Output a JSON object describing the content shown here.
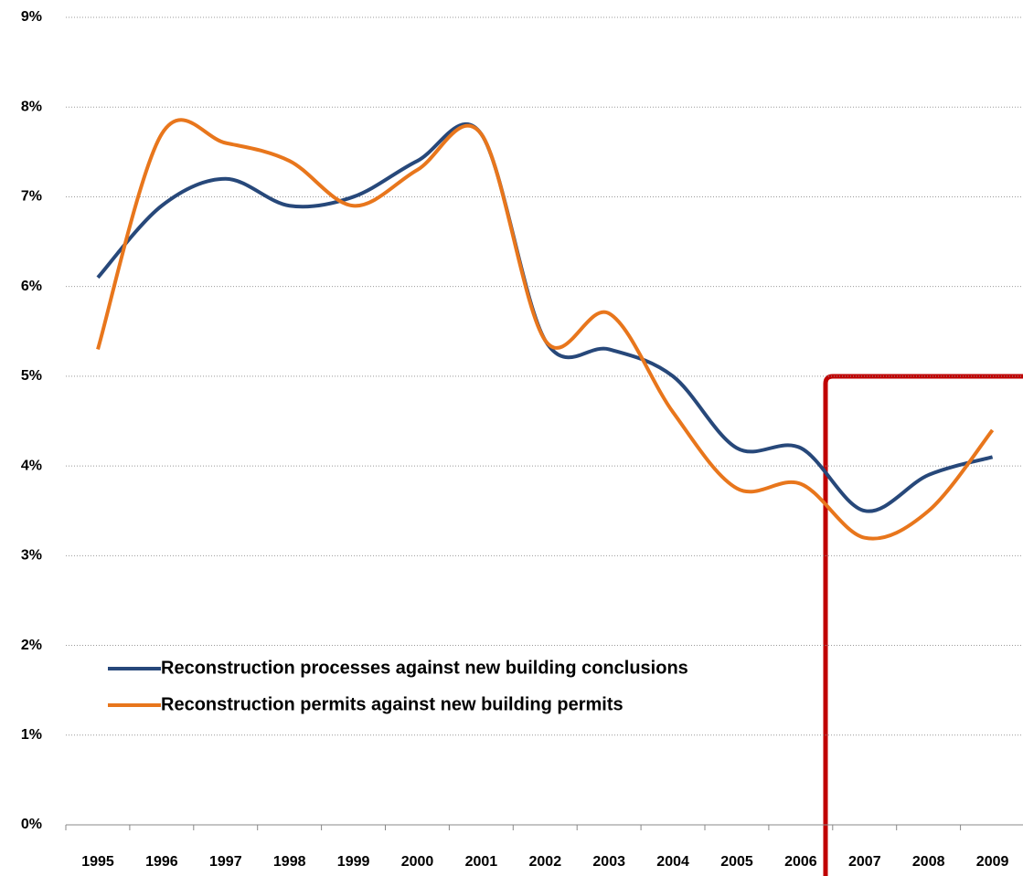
{
  "chart_data": {
    "type": "line",
    "categories": [
      "1995",
      "1996",
      "1997",
      "1998",
      "1999",
      "2000",
      "2001",
      "2002",
      "2003",
      "2004",
      "2005",
      "2006",
      "2007",
      "2008",
      "2009"
    ],
    "series": [
      {
        "name": "Reconstruction  processes against new building conclusions",
        "color": "#27487a",
        "values": [
          6.1,
          6.9,
          7.2,
          6.9,
          7.0,
          7.4,
          7.7,
          5.4,
          5.3,
          5.0,
          4.2,
          4.2,
          3.5,
          3.9,
          4.1
        ]
      },
      {
        "name": "Reconstruction permits against new building permits",
        "color": "#e8761c",
        "values": [
          5.3,
          7.7,
          7.6,
          7.4,
          6.9,
          7.3,
          7.7,
          5.4,
          5.7,
          4.6,
          3.75,
          3.8,
          3.2,
          3.5,
          4.4
        ]
      }
    ],
    "ylim": [
      0,
      9
    ],
    "yticks": [
      {
        "value": 0,
        "label": "0%"
      },
      {
        "value": 1,
        "label": "1%"
      },
      {
        "value": 2,
        "label": "2%"
      },
      {
        "value": 3,
        "label": "3%"
      },
      {
        "value": 4,
        "label": "4%"
      },
      {
        "value": 5,
        "label": "5%"
      },
      {
        "value": 6,
        "label": "6%"
      },
      {
        "value": 7,
        "label": "7%"
      },
      {
        "value": 8,
        "label": "8%"
      },
      {
        "value": 9,
        "label": "9%"
      }
    ],
    "grid": true
  }
}
